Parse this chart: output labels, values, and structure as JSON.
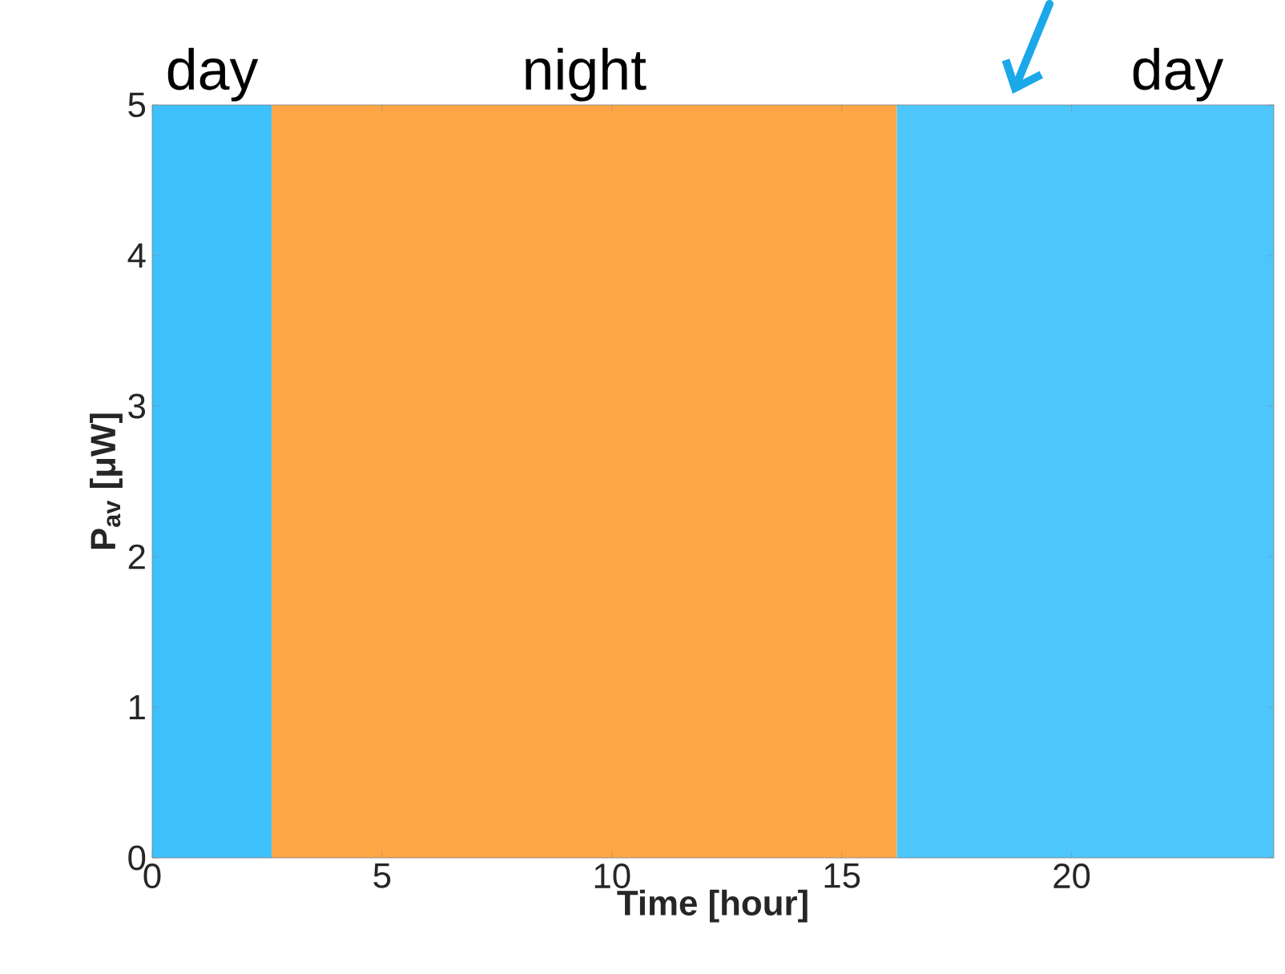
{
  "chart_data": {
    "type": "histogram",
    "xlabel": "Time [hour]",
    "ylabel": "P$_{av}$ [μW]",
    "xlim": [
      0,
      24.4
    ],
    "ylim": [
      0,
      5
    ],
    "xticks": [
      0,
      5,
      10,
      15,
      20
    ],
    "yticks": [
      0,
      1,
      2,
      3,
      4,
      5
    ],
    "bins": [
      0,
      2.6,
      16.2,
      24.4
    ],
    "values": [
      5,
      5,
      5
    ],
    "colors": [
      "#3ec0fa",
      "#fca646",
      "#4cc6fb"
    ],
    "annotations": [
      {
        "text": "day",
        "x": 1.3,
        "y": 5
      },
      {
        "text": "night",
        "x": 9.4,
        "y": 5
      },
      {
        "text": "day",
        "x": 22.3,
        "y": 5
      }
    ]
  }
}
